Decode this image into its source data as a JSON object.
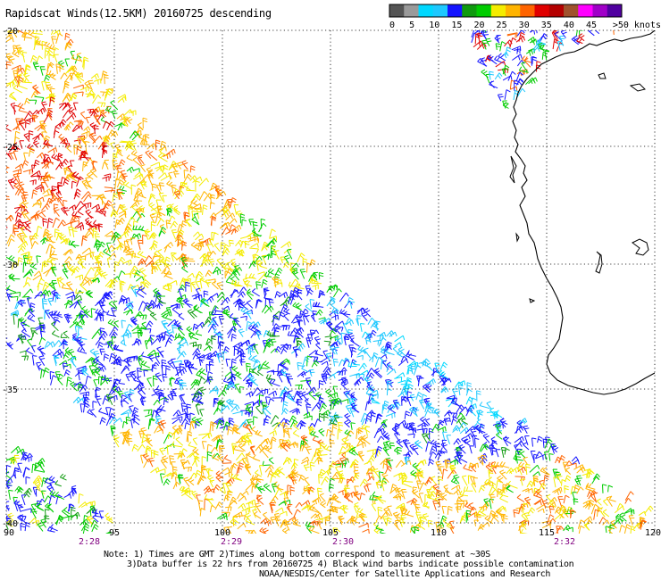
{
  "title": "Rapidscat Winds(12.5KM) 20160725 descending",
  "legend": {
    "labels": [
      "0",
      "5",
      "10",
      "15",
      "20",
      "25",
      "30",
      "35",
      "40",
      "45",
      ">50 knots"
    ],
    "colors": [
      "#555555",
      "#9a9a9a",
      "#00d8ff",
      "#1ec8ff",
      "#1414ff",
      "#0f9a0f",
      "#00cc00",
      "#f4ec00",
      "#ffb400",
      "#ff6400",
      "#e00000",
      "#b40000",
      "#a0522d",
      "#ff00ff",
      "#a000c8",
      "#5000a0"
    ]
  },
  "map": {
    "lat_labels": [
      "-20",
      "-25",
      "-30",
      "-35",
      "-40"
    ],
    "lon_labels": [
      "90",
      "95",
      "100",
      "105",
      "110",
      "115",
      "120"
    ],
    "time_labels": [
      "2:28",
      "2:29",
      "2:30",
      "2:32"
    ],
    "time_color": "#800080",
    "grid": "dotted",
    "land_outline": "black"
  },
  "notes": {
    "line1": "Note: 1) Times are GMT 2)Times along bottom correspond to measurement at ~30S",
    "line2": "3)Data buffer is 22 hrs from 20160725 4) Black wind barbs indicate possible contamination",
    "line3": "NOAA/NESDIS/Center for Satellite Applications and Research"
  }
}
